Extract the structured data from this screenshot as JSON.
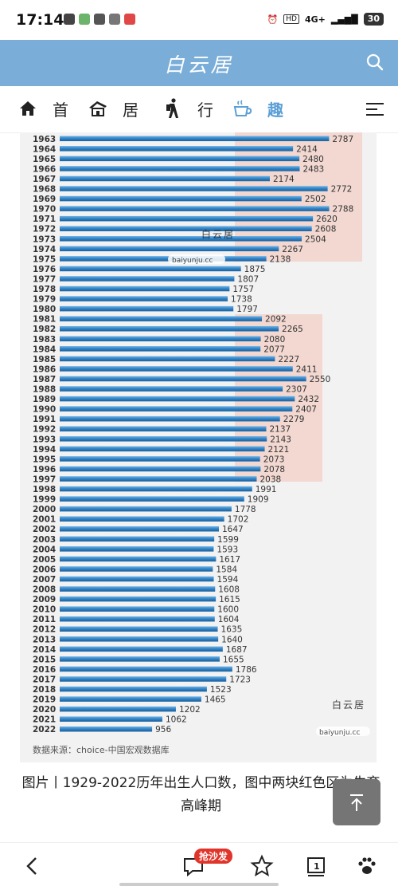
{
  "status": {
    "time": "17:14",
    "network": "4G+",
    "battery": "30"
  },
  "header": {
    "logo": "白云居",
    "search_icon": "search-icon"
  },
  "nav": {
    "items": [
      {
        "label": "首",
        "icon": "home-icon",
        "active": false
      },
      {
        "label": "居",
        "icon": "house-icon",
        "active": false
      },
      {
        "label": "行",
        "icon": "hiker-icon",
        "active": false
      },
      {
        "label": "趣",
        "icon": "coffee-icon",
        "active": true
      }
    ],
    "menu_icon": "menu-icon"
  },
  "chart_data": {
    "type": "bar",
    "orientation": "horizontal",
    "categories": [
      "1963",
      "1964",
      "1965",
      "1966",
      "1967",
      "1968",
      "1969",
      "1970",
      "1971",
      "1972",
      "1973",
      "1974",
      "1975",
      "1976",
      "1977",
      "1978",
      "1979",
      "1980",
      "1981",
      "1982",
      "1983",
      "1984",
      "1985",
      "1986",
      "1987",
      "1988",
      "1989",
      "1990",
      "1991",
      "1992",
      "1993",
      "1994",
      "1995",
      "1996",
      "1997",
      "1998",
      "1999",
      "2000",
      "2001",
      "2002",
      "2003",
      "2004",
      "2005",
      "2006",
      "2007",
      "2008",
      "2009",
      "2010",
      "2011",
      "2012",
      "2013",
      "2014",
      "2015",
      "2016",
      "2017",
      "2018",
      "2019",
      "2020",
      "2021",
      "2022"
    ],
    "values": [
      2787,
      2414,
      2480,
      2483,
      2174,
      2772,
      2502,
      2788,
      2620,
      2608,
      2504,
      2267,
      2138,
      1875,
      1807,
      1757,
      1738,
      1797,
      2092,
      2265,
      2080,
      2077,
      2227,
      2411,
      2550,
      2307,
      2432,
      2407,
      2279,
      2137,
      2143,
      2121,
      2073,
      2078,
      2038,
      1991,
      1909,
      1778,
      1702,
      1647,
      1599,
      1593,
      1617,
      1584,
      1594,
      1608,
      1615,
      1600,
      1604,
      1635,
      1640,
      1687,
      1655,
      1786,
      1723,
      1523,
      1465,
      1202,
      1062,
      956
    ],
    "source": "数据来源：choice-中国宏观数据库",
    "watermark_name": "白云居",
    "watermark_url": "baiyunju.cc",
    "highlight_color": "#f2cfc6",
    "bar_color": "#2f82c4"
  },
  "caption": "图片丨1929-2022历年出生人口数，图中两块红色区为生育高峰期",
  "back_to_top_icon": "arrow-up-to-top-icon",
  "bottom": {
    "back_icon": "back-arrow-icon",
    "comment_icon": "comment-icon",
    "sofa_badge": "抢沙发",
    "star_icon": "star-icon",
    "page_badge": "1",
    "page_icon": "page-icon",
    "paw_icon": "paw-icon"
  }
}
